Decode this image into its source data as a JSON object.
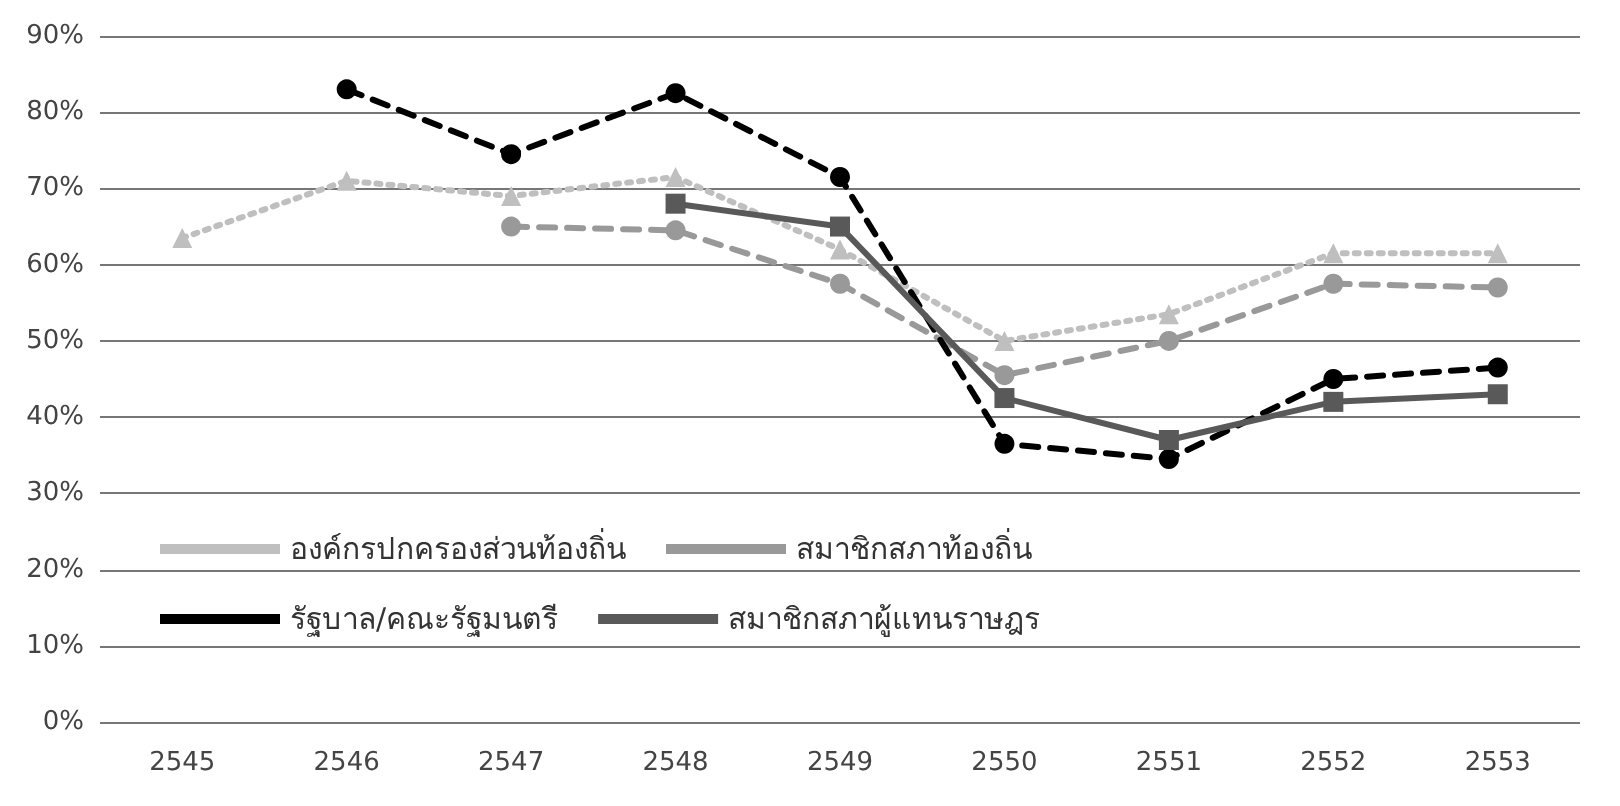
{
  "chart_data": {
    "type": "line",
    "categories": [
      "2545",
      "2546",
      "2547",
      "2548",
      "2549",
      "2550",
      "2551",
      "2552",
      "2553"
    ],
    "ylim": [
      0,
      90
    ],
    "yticks": [
      {
        "value": 0,
        "label": "0%"
      },
      {
        "value": 10,
        "label": "10%"
      },
      {
        "value": 20,
        "label": "20%"
      },
      {
        "value": 30,
        "label": "30%"
      },
      {
        "value": 40,
        "label": "40%"
      },
      {
        "value": 50,
        "label": "50%"
      },
      {
        "value": 60,
        "label": "60%"
      },
      {
        "value": 70,
        "label": "70%"
      },
      {
        "value": 80,
        "label": "80%"
      },
      {
        "value": 90,
        "label": "90%"
      }
    ],
    "grid": "y",
    "legend": "bottom left",
    "series": [
      {
        "name": "องค์กรปกครองส่วนท้องถิ่น",
        "color": "#bfbfbf",
        "marker": "triangle",
        "line_style": "dotted",
        "values": [
          63.5,
          71,
          69,
          71.5,
          62,
          50,
          53.5,
          61.5,
          61.5
        ]
      },
      {
        "name": "สมาชิกสภาท้องถิ่น",
        "color": "#999999",
        "marker": "circle",
        "line_style": "dashed",
        "values": [
          null,
          null,
          65,
          64.5,
          57.5,
          45.5,
          50,
          57.5,
          57
        ]
      },
      {
        "name": "รัฐบาล/คณะรัฐมนตรี",
        "color": "#000000",
        "marker": "circle",
        "line_style": "dashed",
        "values": [
          null,
          83,
          74.5,
          82.5,
          71.5,
          36.5,
          34.5,
          45,
          46.5
        ]
      },
      {
        "name": "สมาชิกสภาผู้แทนราษฎร",
        "color": "#595959",
        "marker": "square",
        "line_style": "solid",
        "values": [
          null,
          null,
          null,
          68,
          65,
          42.5,
          37,
          42,
          43
        ]
      }
    ]
  }
}
